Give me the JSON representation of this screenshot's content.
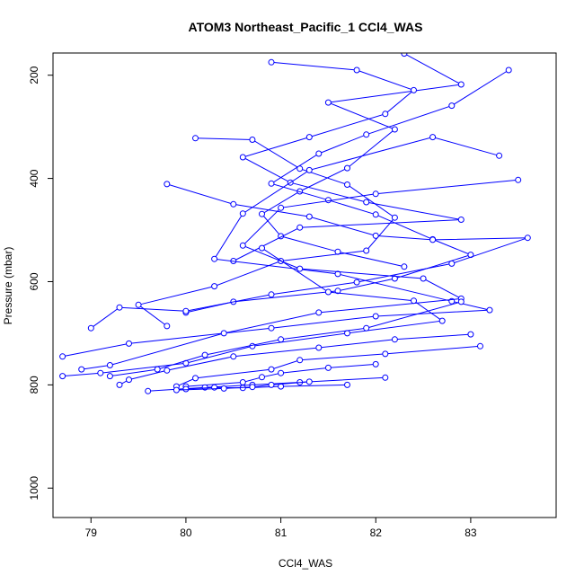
{
  "chart_data": {
    "type": "line",
    "title": "ATOM3 Northeast_Pacific_1 CCl4_WAS",
    "xlabel": "CCl4_WAS",
    "ylabel": "Pressure (mbar)",
    "xlim": [
      78.6,
      83.9
    ],
    "ylim": [
      1057,
      157
    ],
    "y_reversed": true,
    "xticks": [
      79,
      80,
      81,
      82,
      83
    ],
    "yticks": [
      200,
      400,
      600,
      800,
      1000
    ],
    "grid": false,
    "marker": "open-circle",
    "series": [
      {
        "color": "#0000ff",
        "x": [
          82.3,
          82.9,
          81.5,
          82.2,
          81.7,
          81.2,
          80.8,
          81.0,
          81.6,
          82.3
        ],
        "y": [
          158,
          218,
          253,
          305,
          380,
          425,
          469,
          512,
          542,
          571
        ]
      },
      {
        "color": "#0000ff",
        "x": [
          80.9,
          81.8,
          82.4,
          82.1,
          81.3,
          80.6,
          81.1,
          81.9,
          82.9,
          81.2,
          80.5
        ],
        "y": [
          175,
          190,
          229,
          275,
          320,
          359,
          408,
          446,
          480,
          495,
          560
        ]
      },
      {
        "color": "#0000ff",
        "x": [
          83.4,
          82.8,
          81.9,
          81.4,
          80.9,
          81.5,
          82.0,
          82.6,
          83.0,
          82.2,
          81.6,
          80.5,
          80.0
        ],
        "y": [
          190,
          259,
          315,
          352,
          410,
          442,
          470,
          518,
          548,
          594,
          618,
          639,
          660
        ]
      },
      {
        "color": "#0000ff",
        "x": [
          80.1,
          80.7,
          81.2,
          81.7,
          82.2,
          81.9,
          81.0,
          80.3,
          79.5,
          79.8
        ],
        "y": [
          322,
          325,
          381,
          412,
          476,
          540,
          560,
          609,
          645,
          686
        ]
      },
      {
        "color": "#0000ff",
        "x": [
          79.8,
          80.5,
          81.3,
          82.0,
          82.6,
          83.6,
          82.8,
          81.8,
          80.9,
          80.0,
          79.3,
          79.0
        ],
        "y": [
          411,
          450,
          474,
          511,
          519,
          515,
          565,
          601,
          625,
          657,
          650,
          690
        ]
      },
      {
        "color": "#0000ff",
        "x": [
          83.3,
          82.6,
          81.3,
          80.6,
          80.3,
          81.6,
          82.8,
          83.2,
          82.0,
          80.9,
          79.4,
          78.7
        ],
        "y": [
          356,
          320,
          384,
          468,
          556,
          585,
          638,
          655,
          667,
          690,
          720,
          745
        ]
      },
      {
        "color": "#0000ff",
        "x": [
          83.5,
          82.0,
          81.0,
          80.6,
          81.2,
          82.5,
          82.9,
          81.4,
          80.4,
          79.2,
          78.9
        ],
        "y": [
          403,
          430,
          457,
          530,
          575,
          594,
          633,
          660,
          700,
          762,
          770
        ]
      },
      {
        "color": "#0000ff",
        "x": [
          80.8,
          81.5,
          82.4,
          82.7,
          81.7,
          80.7,
          80.0,
          79.1,
          78.7
        ],
        "y": [
          535,
          620,
          637,
          676,
          700,
          725,
          758,
          777,
          783
        ]
      },
      {
        "color": "#0000ff",
        "x": [
          82.9,
          81.9,
          81.0,
          80.2,
          79.7,
          79.2
        ],
        "y": [
          639,
          690,
          712,
          742,
          770,
          783
        ]
      },
      {
        "color": "#0000ff",
        "x": [
          83.0,
          82.2,
          81.4,
          80.5,
          79.8,
          79.4,
          79.3
        ],
        "y": [
          702,
          712,
          728,
          745,
          772,
          790,
          800
        ]
      },
      {
        "color": "#0000ff",
        "x": [
          83.1,
          82.1,
          81.2,
          80.9,
          80.1,
          79.9
        ],
        "y": [
          725,
          740,
          752,
          770,
          787,
          803
        ]
      },
      {
        "color": "#0000ff",
        "x": [
          82.0,
          81.5,
          81.0,
          80.8,
          80.6,
          80.0
        ],
        "y": [
          760,
          767,
          777,
          785,
          795,
          803
        ]
      },
      {
        "color": "#0000ff",
        "x": [
          82.1,
          81.2,
          80.7,
          80.2,
          79.6
        ],
        "y": [
          786,
          795,
          800,
          805,
          812
        ]
      },
      {
        "color": "#0000ff",
        "x": [
          81.7,
          81.0,
          80.6,
          80.3,
          80.0
        ],
        "y": [
          800,
          803,
          806,
          805,
          808
        ]
      },
      {
        "color": "#0000ff",
        "x": [
          81.3,
          80.9,
          80.7,
          80.4,
          79.9
        ],
        "y": [
          794,
          800,
          804,
          807,
          810
        ]
      }
    ]
  }
}
